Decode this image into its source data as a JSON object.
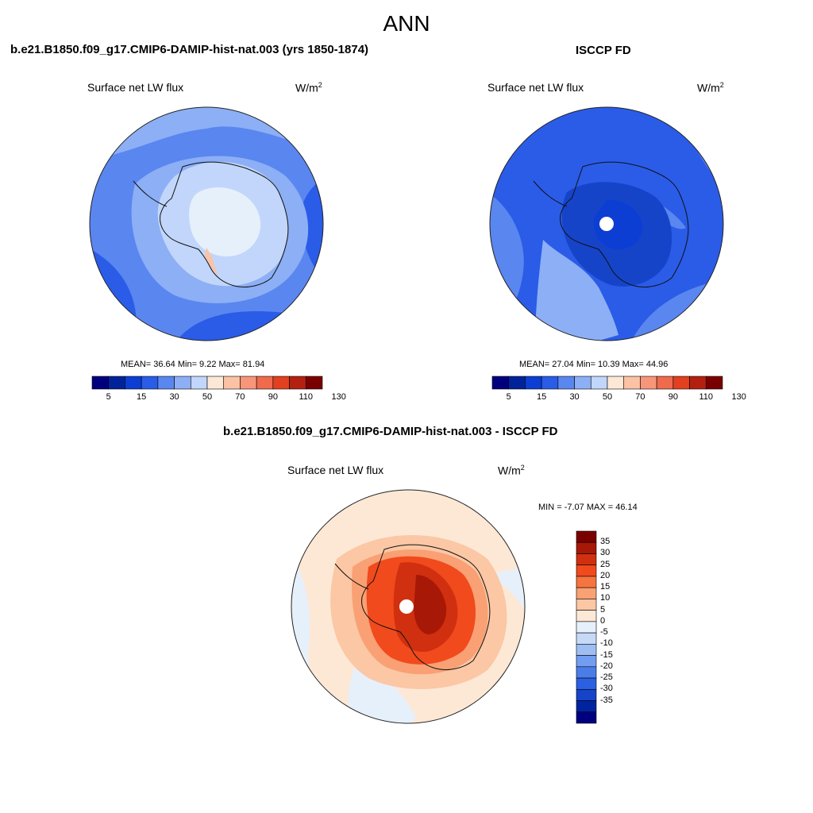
{
  "page": {
    "title": "ANN"
  },
  "panels": [
    {
      "title": "b.e21.B1850.f09_g17.CMIP6-DAMIP-hist-nat.003 (yrs 1850-1874)",
      "variable": "Surface net LW flux",
      "units": "W/m",
      "units_sup": "2",
      "stats": "MEAN=  36.64  Min=   9.22  Max=  81.94"
    },
    {
      "title": "ISCCP FD",
      "variable": "Surface net LW flux",
      "units": "W/m",
      "units_sup": "2",
      "stats": "MEAN=  27.04  Min=  10.39  Max=  44.96"
    },
    {
      "title": "b.e21.B1850.f09_g17.CMIP6-DAMIP-hist-nat.003 - ISCCP FD",
      "variable": "Surface net LW flux",
      "units": "W/m",
      "units_sup": "2",
      "stats": "MIN =  -7.07 MAX =  46.14"
    }
  ],
  "colorbar_abs": {
    "labels": [
      "5",
      "15",
      "30",
      "50",
      "70",
      "90",
      "110",
      "130"
    ],
    "colors": [
      "#00007f",
      "#00239a",
      "#0c3ed4",
      "#2a5ce8",
      "#5a86f0",
      "#8caff5",
      "#c1d6fa",
      "#fde8d6",
      "#fbc2a6",
      "#f7967b",
      "#f06a4d",
      "#e2401f",
      "#b42010",
      "#7a0000"
    ]
  },
  "colorbar_diff": {
    "labels": [
      "35",
      "30",
      "25",
      "20",
      "15",
      "10",
      "5",
      "0",
      "-5",
      "-10",
      "-15",
      "-20",
      "-25",
      "-30",
      "-35"
    ],
    "colors": [
      "#7a0000",
      "#a81807",
      "#d0300f",
      "#f04a1d",
      "#f6743f",
      "#f9a074",
      "#fbc7a5",
      "#fde8d6",
      "#e6f0fb",
      "#c6daf8",
      "#9ebef3",
      "#729df0",
      "#4b7de9",
      "#2c60e3",
      "#1644c9",
      "#0024a0",
      "#00007f"
    ]
  }
}
